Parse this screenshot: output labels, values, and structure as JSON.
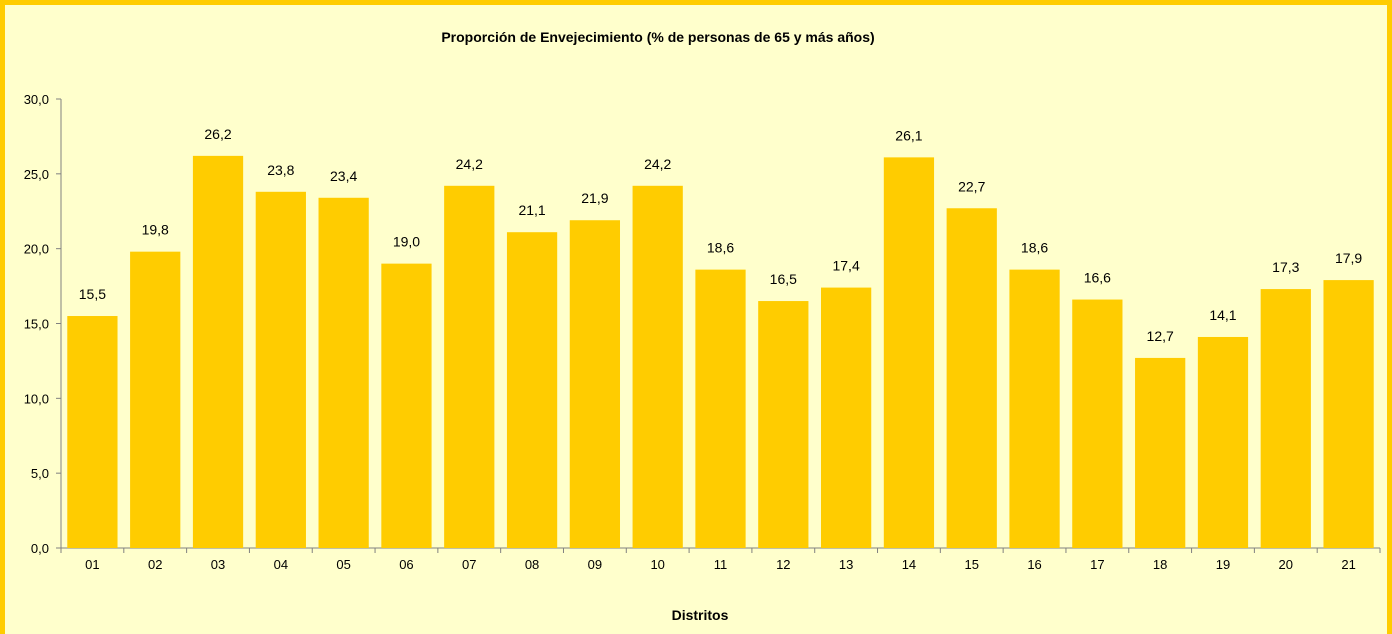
{
  "chart_data": {
    "type": "bar",
    "title": "Proporción de Envejecimiento (% de personas de 65 y más años)",
    "xlabel": "Distritos",
    "ylabel": "",
    "categories": [
      "01",
      "02",
      "03",
      "04",
      "05",
      "06",
      "07",
      "08",
      "09",
      "10",
      "11",
      "12",
      "13",
      "14",
      "15",
      "16",
      "17",
      "18",
      "19",
      "20",
      "21"
    ],
    "values": [
      15.5,
      19.8,
      26.2,
      23.8,
      23.4,
      19.0,
      24.2,
      21.1,
      21.9,
      24.2,
      18.6,
      16.5,
      17.4,
      26.1,
      22.7,
      18.6,
      16.6,
      12.7,
      14.1,
      17.3,
      17.9
    ],
    "data_labels": [
      "15,5",
      "19,8",
      "26,2",
      "23,8",
      "23,4",
      "19,0",
      "24,2",
      "21,1",
      "21,9",
      "24,2",
      "18,6",
      "16,5",
      "17,4",
      "26,1",
      "22,7",
      "18,6",
      "16,6",
      "12,7",
      "14,1",
      "17,3",
      "17,9"
    ],
    "ylim": [
      0,
      30
    ],
    "y_ticks": [
      "0,0",
      "5,0",
      "10,0",
      "15,0",
      "20,0",
      "25,0",
      "30,0"
    ],
    "grid": false,
    "legend": "none",
    "bar_color": "#FFCC00",
    "background_color": "#FFFFCC",
    "border_color": "#FFCC00"
  }
}
